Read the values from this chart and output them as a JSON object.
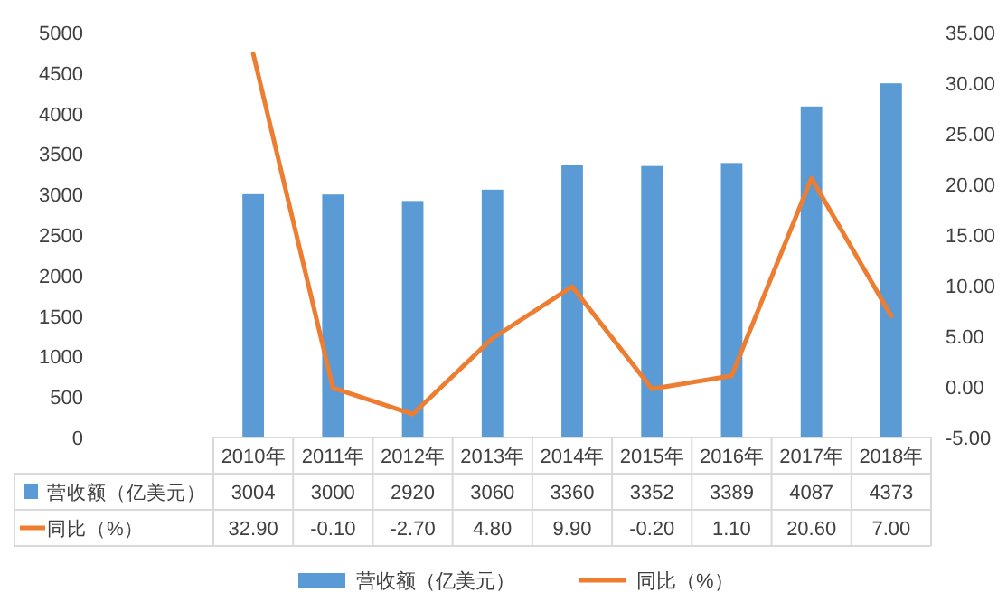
{
  "chart_data": {
    "type": "bar",
    "categories": [
      "2010年",
      "2011年",
      "2012年",
      "2013年",
      "2014年",
      "2015年",
      "2016年",
      "2017年",
      "2018年"
    ],
    "series": [
      {
        "name": "营收额（亿美元）",
        "color": "#5b9bd5",
        "values": [
          3004,
          3000,
          2920,
          3060,
          3360,
          3352,
          3389,
          4087,
          4373
        ],
        "value_labels": [
          "3004",
          "3000",
          "2920",
          "3060",
          "3360",
          "3352",
          "3389",
          "4087",
          "4373"
        ]
      },
      {
        "name": "同比（%）",
        "type": "line",
        "axis": "y2",
        "color": "#ed7d31",
        "values": [
          32.9,
          -0.1,
          -2.7,
          4.8,
          9.9,
          -0.2,
          1.1,
          20.6,
          7.0
        ],
        "value_labels": [
          "32.90",
          "-0.10",
          "-2.70",
          "4.80",
          "9.90",
          "-0.20",
          "1.10",
          "20.60",
          "7.00"
        ]
      }
    ],
    "ylim": [
      0,
      5000
    ],
    "yticks": [
      0,
      500,
      1000,
      1500,
      2000,
      2500,
      3000,
      3500,
      4000,
      4500,
      5000
    ],
    "y2lim": [
      -5,
      35
    ],
    "y2ticks": [
      {
        "value": -5,
        "label": "-5.00"
      },
      {
        "value": 0,
        "label": "0.00"
      },
      {
        "value": 5,
        "label": "5.00"
      },
      {
        "value": 10,
        "label": "10.00"
      },
      {
        "value": 15,
        "label": "15.00"
      },
      {
        "value": 20,
        "label": "20.00"
      },
      {
        "value": 25,
        "label": "25.00"
      },
      {
        "value": 30,
        "label": "30.00"
      },
      {
        "value": 35,
        "label": "35.00"
      }
    ],
    "legend": "bottom",
    "grid": false
  }
}
